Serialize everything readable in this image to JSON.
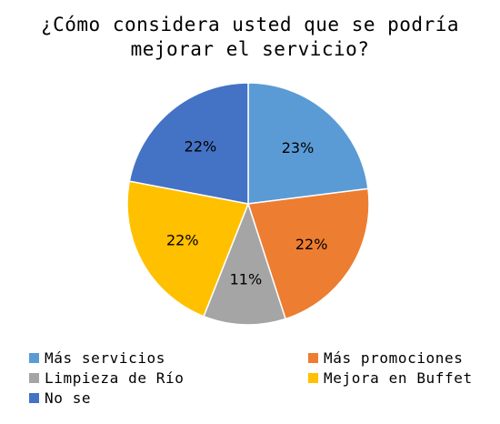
{
  "chart_data": {
    "type": "pie",
    "title_lines": [
      "¿Cómo considera usted que se podría",
      "mejorar el servicio?"
    ],
    "categories": [
      "Más servicios",
      "Más promociones",
      "Limpieza de Río",
      "Mejora en Buffet",
      "No se"
    ],
    "values": [
      23,
      22,
      11,
      22,
      22
    ],
    "data_labels": [
      "23%",
      "22%",
      "11%",
      "22%",
      "22%"
    ],
    "colors": [
      "#5B9BD5",
      "#ED7D31",
      "#A5A5A5",
      "#FFC000",
      "#4472C4"
    ],
    "legend_position": "bottom",
    "start_angle": "top",
    "direction": "clockwise"
  }
}
